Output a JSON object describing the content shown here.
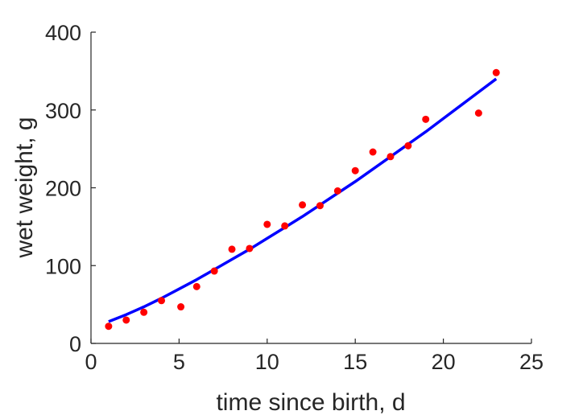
{
  "chart_data": {
    "type": "scatter",
    "title": "",
    "xlabel": "time since birth, d",
    "ylabel": "wet weight, g",
    "xlim": [
      0,
      25
    ],
    "ylim": [
      0,
      400
    ],
    "xticks": [
      0,
      5,
      10,
      15,
      20,
      25
    ],
    "yticks": [
      0,
      100,
      200,
      300,
      400
    ],
    "grid": false,
    "legend": "none",
    "series": [
      {
        "kind": "points",
        "color": "#ff0000",
        "x": [
          1,
          2,
          3,
          4,
          5.1,
          6,
          7,
          8,
          9,
          10,
          11,
          12,
          13,
          14,
          15,
          16,
          17,
          18,
          19,
          22,
          23
        ],
        "y": [
          22,
          30,
          40,
          55,
          47,
          73,
          93,
          121,
          122,
          153,
          151,
          178,
          177,
          196,
          222,
          246,
          240,
          254,
          288,
          296,
          348
        ]
      },
      {
        "kind": "fit-line",
        "color": "#0000ff",
        "x": [
          1,
          2,
          3,
          4,
          5,
          6,
          7,
          8,
          9,
          10,
          11,
          12,
          13,
          14,
          15,
          16,
          17,
          18,
          19,
          20,
          21,
          22,
          23
        ],
        "y": [
          28,
          37,
          47,
          58,
          70,
          82,
          95,
          108,
          121,
          135,
          149,
          163,
          178,
          193,
          208,
          224,
          240,
          256,
          272,
          289,
          306,
          323,
          340
        ]
      }
    ]
  }
}
